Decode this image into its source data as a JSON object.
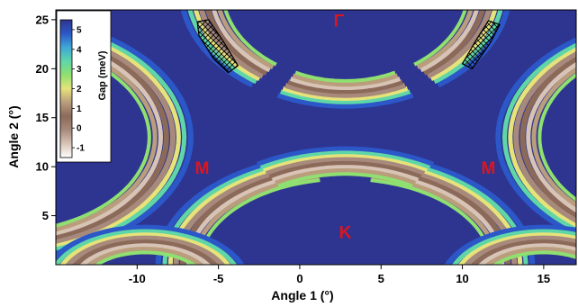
{
  "chart_data": {
    "type": "heatmap",
    "title": "",
    "xlabel": "Angle 1 (°)",
    "ylabel": "Angle 2 (°)",
    "xlim": [
      -15,
      17
    ],
    "ylim": [
      0,
      26
    ],
    "x_ticks": [
      -10,
      -5,
      0,
      5,
      10,
      15
    ],
    "y_ticks": [
      5,
      10,
      15,
      20,
      25
    ],
    "grid": false,
    "background_color": "#2e3590",
    "colorbar": {
      "title": "Gap (meV)",
      "range": [
        -1.5,
        5.5
      ],
      "ticks": [
        -1,
        0,
        1,
        2,
        3,
        4,
        5
      ],
      "placement": "top-left",
      "colors": [
        "#ffffff",
        "#d8c4b6",
        "#a88a7c",
        "#8c6a5a",
        "#b99d7c",
        "#e6e37a",
        "#8fe070",
        "#5fd6a8",
        "#3fa9d8",
        "#2c57c8",
        "#2e3590"
      ]
    },
    "annotations": [
      {
        "text": "Γ",
        "x": 2.4,
        "y": 24.3
      },
      {
        "text": "M",
        "x": -6.0,
        "y": 9.3
      },
      {
        "text": "M",
        "x": 11.6,
        "y": 9.3
      },
      {
        "text": "K",
        "x": 2.8,
        "y": 2.7
      }
    ],
    "hatched_regions": [
      {
        "name": "left-hatched-region",
        "points": [
          [
            -6.3,
            24.8
          ],
          [
            -5.6,
            25.0
          ],
          [
            -4.7,
            22.8
          ],
          [
            -3.8,
            20.3
          ],
          [
            -4.4,
            19.6
          ],
          [
            -5.3,
            21.0
          ],
          [
            -6.2,
            23.4
          ]
        ]
      },
      {
        "name": "right-hatched-region",
        "points": [
          [
            11.6,
            24.9
          ],
          [
            12.3,
            24.5
          ],
          [
            11.7,
            22.6
          ],
          [
            10.6,
            20.0
          ],
          [
            10.0,
            20.5
          ],
          [
            10.8,
            22.8
          ]
        ]
      }
    ],
    "bands": [
      {
        "name": "top-left-arc",
        "cx": 3.0,
        "cy": 28.0,
        "rx": 9.0,
        "ry": 10.5,
        "t0": 150,
        "t1": 235
      },
      {
        "name": "top-right-arc",
        "cx": 2.6,
        "cy": 28.0,
        "rx": 9.0,
        "ry": 10.5,
        "t0": 305,
        "t1": 390
      },
      {
        "name": "top-bottom-arc",
        "cx": 2.8,
        "cy": 28.0,
        "rx": 8.5,
        "ry": 10.5,
        "t0": 245,
        "t1": 295
      },
      {
        "name": "bottom-dome-left",
        "cx": 2.8,
        "cy": 0.0,
        "rx": 10.2,
        "ry": 10.0,
        "t0": 100,
        "t1": 190
      },
      {
        "name": "bottom-dome-right",
        "cx": 2.8,
        "cy": 0.0,
        "rx": 10.2,
        "ry": 10.0,
        "t0": -10,
        "t1": 80
      },
      {
        "name": "bottom-dome-top",
        "cx": 2.8,
        "cy": 0.0,
        "rx": 9.5,
        "ry": 10.5,
        "t0": 60,
        "t1": 120
      },
      {
        "name": "left-crescent",
        "cx": -18.5,
        "cy": 13.0,
        "rx": 10.5,
        "ry": 11.0,
        "t0": -80,
        "t1": 80
      },
      {
        "name": "right-crescent",
        "cx": 24.0,
        "cy": 13.0,
        "rx": 10.5,
        "ry": 11.0,
        "t0": 100,
        "t1": 260
      },
      {
        "name": "left-lower-lobe",
        "cx": -9.5,
        "cy": -2.0,
        "rx": 5.0,
        "ry": 4.5,
        "t0": 0,
        "t1": 180
      },
      {
        "name": "right-lower-lobe",
        "cx": 15.0,
        "cy": -2.0,
        "rx": 5.0,
        "ry": 4.5,
        "t0": 0,
        "t1": 180
      }
    ]
  }
}
